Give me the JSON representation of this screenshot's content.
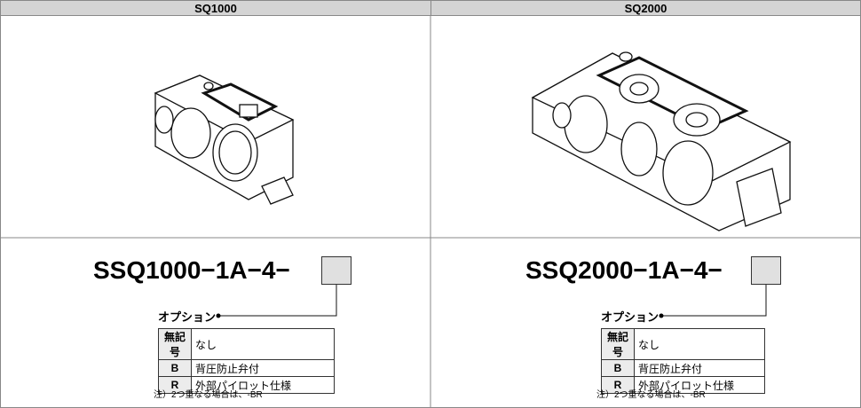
{
  "header": {
    "columns": [
      "SQ1000",
      "SQ2000"
    ]
  },
  "panels": [
    {
      "code": "SSQ1000−1A−4−",
      "option_label": "オプション",
      "options": [
        [
          "無記号",
          "なし"
        ],
        [
          "B",
          "背圧防止弁付"
        ],
        [
          "R",
          "外部パイロット仕様"
        ]
      ],
      "note": "注）2つ重なる場合は、-BR"
    },
    {
      "code": "SSQ2000−1A−4−",
      "option_label": "オプション",
      "options": [
        [
          "無記号",
          "なし"
        ],
        [
          "B",
          "背圧防止弁付"
        ],
        [
          "R",
          "外部パイロット仕様"
        ]
      ],
      "note": "注）2つ重なる場合は、-BR"
    }
  ]
}
